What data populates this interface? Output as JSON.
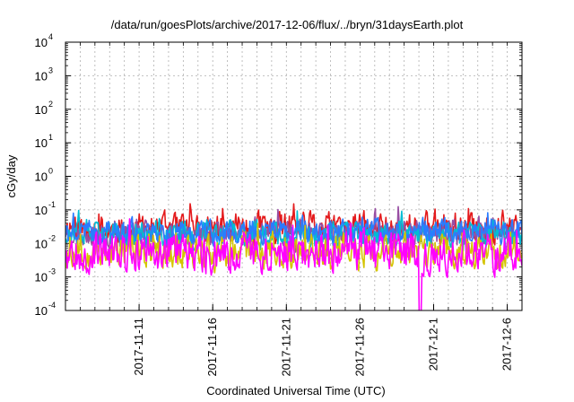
{
  "chart_data": {
    "type": "line",
    "title": "/data/run/goesPlots/archive/2017-12-06/flux/../bryn/31daysEarth.plot",
    "xlabel": "Coordinated Universal Time (UTC)",
    "ylabel": "cGy/day",
    "yscale": "log",
    "ylim": [
      0.0001,
      10000
    ],
    "xlim": [
      "2017-11-06",
      "2017-12-07"
    ],
    "grid": true,
    "legend": "none",
    "y_ticks": [
      {
        "value": 0.0001,
        "base": "10",
        "exp": "-4"
      },
      {
        "value": 0.001,
        "base": "10",
        "exp": "-3"
      },
      {
        "value": 0.01,
        "base": "10",
        "exp": "-2"
      },
      {
        "value": 0.1,
        "base": "10",
        "exp": "-1"
      },
      {
        "value": 1,
        "base": "10",
        "exp": "0"
      },
      {
        "value": 10,
        "base": "10",
        "exp": "1"
      },
      {
        "value": 100,
        "base": "10",
        "exp": "2"
      },
      {
        "value": 1000,
        "base": "10",
        "exp": "3"
      },
      {
        "value": 10000,
        "base": "10",
        "exp": "4"
      }
    ],
    "x_ticks": [
      "2017-11-11",
      "2017-11-16",
      "2017-11-21",
      "2017-11-26",
      "2017-12-1",
      "2017-12-6"
    ],
    "x_tick_dates": [
      "2017-11-11",
      "2017-11-16",
      "2017-11-21",
      "2017-11-26",
      "2017-12-01",
      "2017-12-06"
    ],
    "series": [
      {
        "color": "#e41a1c",
        "base": 0.028,
        "amp": 0.4,
        "seed": 11
      },
      {
        "color": "#984ea3",
        "base": 0.02,
        "amp": 0.35,
        "seed": 23
      },
      {
        "color": "#00bcd4",
        "base": 0.018,
        "amp": 0.35,
        "seed": 37
      },
      {
        "color": "#2b7bff",
        "base": 0.022,
        "amp": 0.3,
        "seed": 41
      },
      {
        "color": "#d4c400",
        "base": 0.006,
        "amp": 0.45,
        "seed": 53
      },
      {
        "color": "#ff00ff",
        "base": 0.0055,
        "amp": 0.5,
        "seed": 67,
        "dropout": {
          "start": "2017-11-30T00:00",
          "end": "2017-11-30T04:00",
          "value": 0.0001
        }
      }
    ]
  }
}
